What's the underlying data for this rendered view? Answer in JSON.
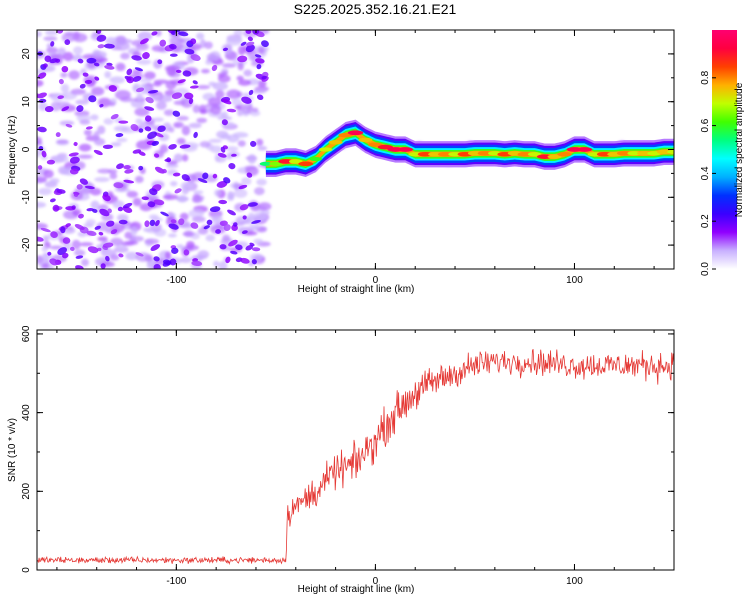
{
  "title": "S225.2025.352.16.21.E21",
  "chart_data": [
    {
      "type": "heatmap",
      "name": "spectrogram",
      "xlabel": "Height of straight line (km)",
      "ylabel": "Frequency (Hz)",
      "xlim": [
        -170,
        150
      ],
      "ylim": [
        -25,
        25
      ],
      "xticks": [
        -100,
        0,
        100
      ],
      "xtick_labels": [
        "-100",
        "0",
        "100"
      ],
      "yticks": [
        -20,
        -10,
        0,
        10,
        20
      ],
      "ytick_labels": [
        "-20",
        "-10",
        "0",
        "10",
        "20"
      ],
      "noise_region_x": [
        -170,
        -55
      ],
      "ridge": {
        "x": [
          -55,
          -50,
          -45,
          -40,
          -35,
          -30,
          -25,
          -20,
          -15,
          -10,
          -5,
          0,
          5,
          10,
          15,
          20,
          25,
          30,
          35,
          40,
          45,
          50,
          55,
          60,
          65,
          70,
          75,
          80,
          85,
          90,
          95,
          100,
          105,
          110,
          115,
          120,
          125,
          130,
          135,
          140,
          145,
          150
        ],
        "freq": [
          -3.0,
          -3.0,
          -2.5,
          -2.5,
          -3.0,
          -2.0,
          0.0,
          1.5,
          3.0,
          3.5,
          2.0,
          1.0,
          0.5,
          0.0,
          0.0,
          -1.0,
          -1.0,
          -1.0,
          -1.0,
          -1.0,
          -1.0,
          -0.8,
          -0.8,
          -0.8,
          -1.0,
          -0.8,
          -1.0,
          -1.0,
          -1.5,
          -1.5,
          -1.0,
          0.0,
          0.0,
          -1.0,
          -1.0,
          -1.0,
          -0.8,
          -0.8,
          -0.8,
          -0.8,
          -0.5,
          -0.5
        ],
        "amplitude": [
          0.55,
          0.65,
          0.9,
          0.7,
          0.85,
          0.6,
          0.7,
          0.75,
          0.8,
          0.95,
          0.75,
          0.8,
          0.9,
          0.95,
          0.95,
          0.7,
          0.85,
          0.75,
          0.8,
          0.7,
          0.85,
          0.75,
          0.8,
          0.7,
          0.85,
          0.75,
          0.8,
          0.7,
          0.9,
          0.75,
          0.8,
          0.95,
          0.95,
          0.7,
          0.85,
          0.75,
          0.8,
          0.7,
          0.75,
          0.7,
          0.75,
          0.7
        ]
      }
    },
    {
      "type": "line",
      "name": "snr",
      "xlabel": "Height of straight line (km)",
      "ylabel": "SNR (10 * v/v)",
      "xlim": [
        -170,
        150
      ],
      "ylim": [
        0,
        610
      ],
      "xticks": [
        -100,
        0,
        100
      ],
      "xtick_labels": [
        "-100",
        "0",
        "100"
      ],
      "yticks": [
        0,
        200,
        400,
        600
      ],
      "ytick_labels": [
        "0",
        "200",
        "400",
        "600"
      ],
      "color": "#e53935",
      "envelope": {
        "x": [
          -170,
          -50,
          -45,
          -44,
          -40,
          -30,
          -20,
          -10,
          0,
          10,
          20,
          30,
          40,
          50,
          60,
          80,
          100,
          120,
          140,
          150
        ],
        "snr": [
          25,
          25,
          25,
          150,
          160,
          200,
          250,
          270,
          330,
          400,
          450,
          480,
          500,
          520,
          530,
          530,
          520,
          520,
          520,
          520
        ]
      },
      "noise_amplitude": {
        "x": [
          -170,
          -45,
          -44,
          0,
          60,
          150
        ],
        "amp": [
          10,
          10,
          45,
          60,
          40,
          45
        ]
      }
    }
  ],
  "colorbar": {
    "label": "Normalized spectral amplitude",
    "ticks": [
      0.0,
      0.2,
      0.4,
      0.6,
      0.8
    ],
    "tick_labels": [
      "0.0",
      "0.2",
      "0.4",
      "0.6",
      "0.8"
    ],
    "range": [
      0,
      1
    ],
    "colors": [
      "#ffffff",
      "#c8b0ff",
      "#9000ff",
      "#3a00ff",
      "#0030ff",
      "#00b0ff",
      "#00ffff",
      "#00ff80",
      "#40ff00",
      "#c0ff00",
      "#ffb000",
      "#ff4000",
      "#ff0040",
      "#ff0070"
    ]
  }
}
